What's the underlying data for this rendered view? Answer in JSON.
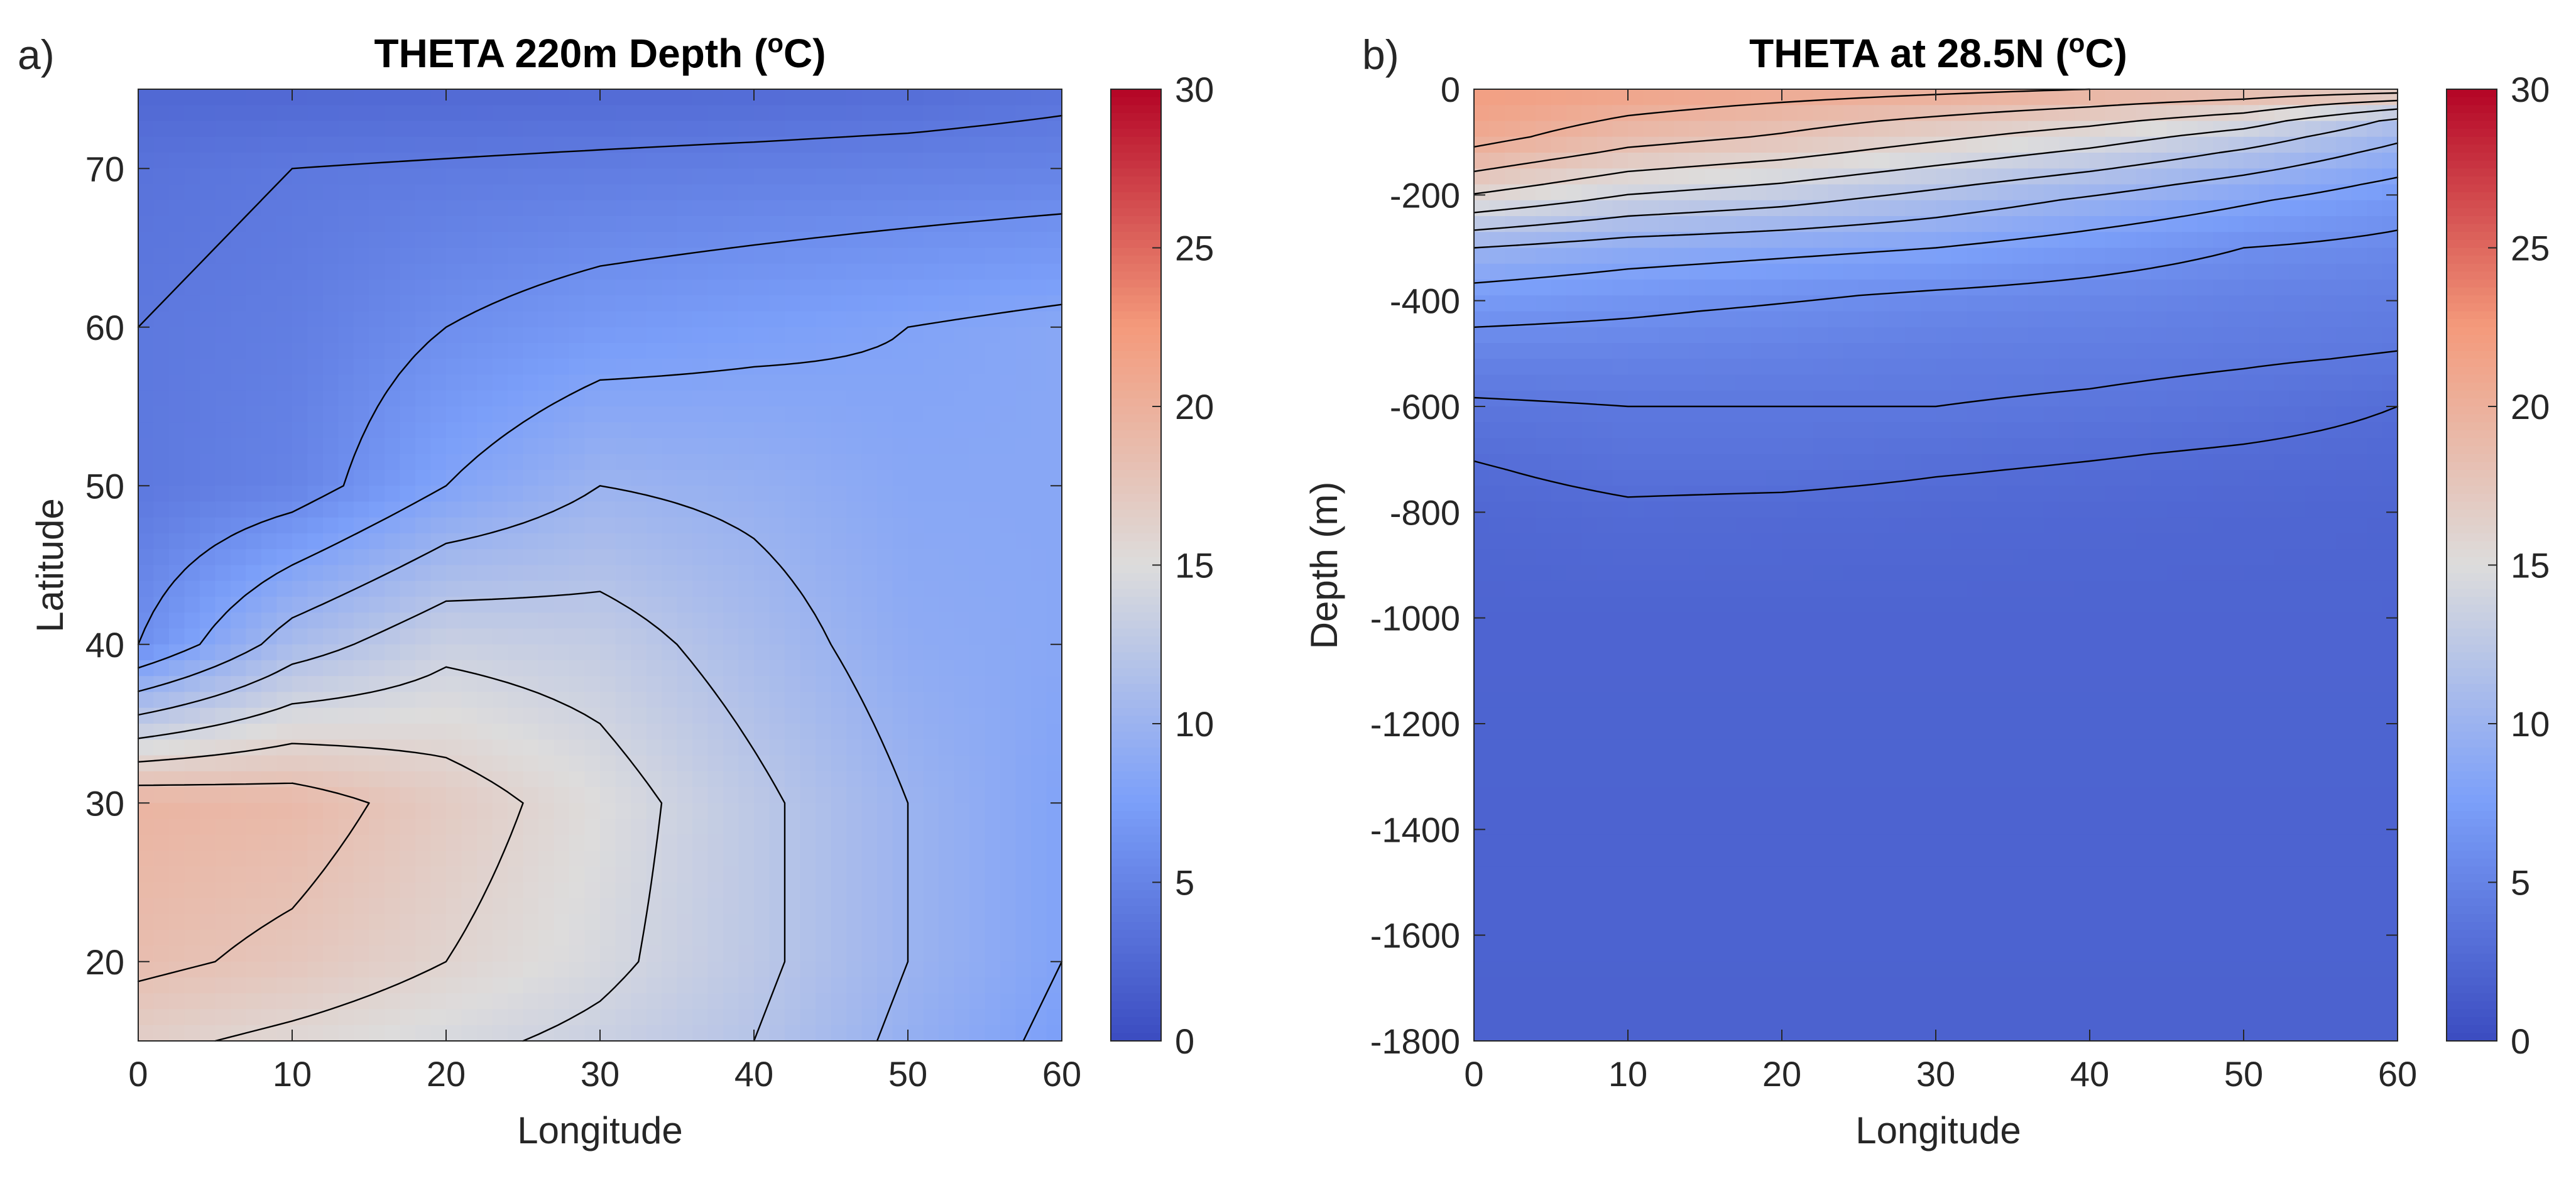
{
  "figure": {
    "colormap": {
      "stops": [
        {
          "t": 0.0,
          "color": "#3b4cc0"
        },
        {
          "t": 0.25,
          "color": "#7b9ff9"
        },
        {
          "t": 0.5,
          "color": "#dddcdc"
        },
        {
          "t": 0.75,
          "color": "#f49a7b"
        },
        {
          "t": 1.0,
          "color": "#b40426"
        }
      ]
    },
    "contour_color": "#000000"
  },
  "chart_data": [
    {
      "panel_label": "a)",
      "type": "heatmap",
      "title": "THETA 220m Depth (",
      "title_superscript": "o",
      "title_suffix": "C)",
      "xlabel": "Longitude",
      "ylabel": "Latitude",
      "xlim": [
        0,
        60
      ],
      "ylim": [
        15,
        75
      ],
      "xticks": [
        0,
        10,
        20,
        30,
        40,
        50,
        60
      ],
      "yticks": [
        20,
        30,
        40,
        50,
        60,
        70
      ],
      "color_range": [
        0,
        30
      ],
      "colorbar_ticks": [
        0,
        5,
        10,
        15,
        20,
        25,
        30
      ],
      "field": {
        "x": [
          0,
          10,
          20,
          30,
          40,
          50,
          60
        ],
        "y": [
          75,
          70,
          60,
          50,
          40,
          30,
          20,
          15
        ],
        "values": [
          [
            2.5,
            2.5,
            2.6,
            2.7,
            2.8,
            3.0,
            3.5
          ],
          [
            3.5,
            4.0,
            4.2,
            4.4,
            4.6,
            4.8,
            5.0
          ],
          [
            4.0,
            4.5,
            6.0,
            7.0,
            7.5,
            8.0,
            8.5
          ],
          [
            4.0,
            5.0,
            8.0,
            10.0,
            9.5,
            8.5,
            8.5
          ],
          [
            6.0,
            11.0,
            13.5,
            13.0,
            11.0,
            9.0,
            8.5
          ],
          [
            19.5,
            19.0,
            17.0,
            15.0,
            12.5,
            10.0,
            8.0
          ],
          [
            18.5,
            17.5,
            16.0,
            14.5,
            12.5,
            10.0,
            8.0
          ],
          [
            16.5,
            15.5,
            14.5,
            13.5,
            12.0,
            9.5,
            7.5
          ]
        ],
        "contour_levels": [
          4,
          6,
          8,
          10,
          12,
          14,
          16,
          18
        ]
      }
    },
    {
      "panel_label": "b)",
      "type": "heatmap",
      "title": "THETA at 28.5N (",
      "title_superscript": "o",
      "title_suffix": "C)",
      "xlabel": "Longitude",
      "ylabel": "Depth (m)",
      "xlim": [
        0,
        60
      ],
      "ylim": [
        -1800,
        0
      ],
      "xticks": [
        0,
        10,
        20,
        30,
        40,
        50,
        60
      ],
      "yticks": [
        0,
        -200,
        -400,
        -600,
        -800,
        -1000,
        -1200,
        -1400,
        -1600,
        -1800
      ],
      "color_range": [
        0,
        30
      ],
      "colorbar_ticks": [
        0,
        5,
        10,
        15,
        20,
        25,
        30
      ],
      "field": {
        "x": [
          0,
          10,
          20,
          30,
          40,
          50,
          60
        ],
        "y": [
          0,
          -50,
          -100,
          -200,
          -300,
          -400,
          -500,
          -600,
          -700,
          -800,
          -1000,
          -1800
        ],
        "values": [
          [
            22.0,
            21.5,
            21.0,
            20.5,
            20.0,
            19.5,
            19.0
          ],
          [
            21.5,
            20.0,
            19.0,
            18.0,
            17.0,
            15.5,
            12.0
          ],
          [
            20.5,
            18.5,
            17.5,
            16.0,
            14.5,
            12.5,
            10.0
          ],
          [
            16.0,
            14.0,
            13.0,
            11.5,
            10.0,
            8.5,
            7.0
          ],
          [
            10.0,
            9.0,
            8.5,
            8.0,
            7.0,
            6.0,
            5.5
          ],
          [
            7.0,
            6.5,
            6.0,
            5.5,
            5.2,
            4.8,
            4.5
          ],
          [
            5.0,
            5.0,
            4.8,
            4.5,
            4.4,
            4.2,
            4.0
          ],
          [
            3.8,
            4.0,
            4.0,
            4.0,
            3.8,
            3.5,
            3.0
          ],
          [
            3.0,
            3.5,
            3.5,
            3.2,
            3.0,
            2.8,
            2.6
          ],
          [
            2.5,
            2.8,
            2.7,
            2.6,
            2.5,
            2.4,
            2.3
          ],
          [
            2.2,
            2.2,
            2.2,
            2.2,
            2.2,
            2.2,
            2.2
          ],
          [
            2.0,
            2.0,
            2.0,
            2.0,
            2.0,
            2.0,
            2.0
          ]
        ],
        "contour_levels": [
          3,
          4,
          6,
          8,
          10,
          12,
          14,
          16,
          18,
          20
        ]
      }
    }
  ]
}
